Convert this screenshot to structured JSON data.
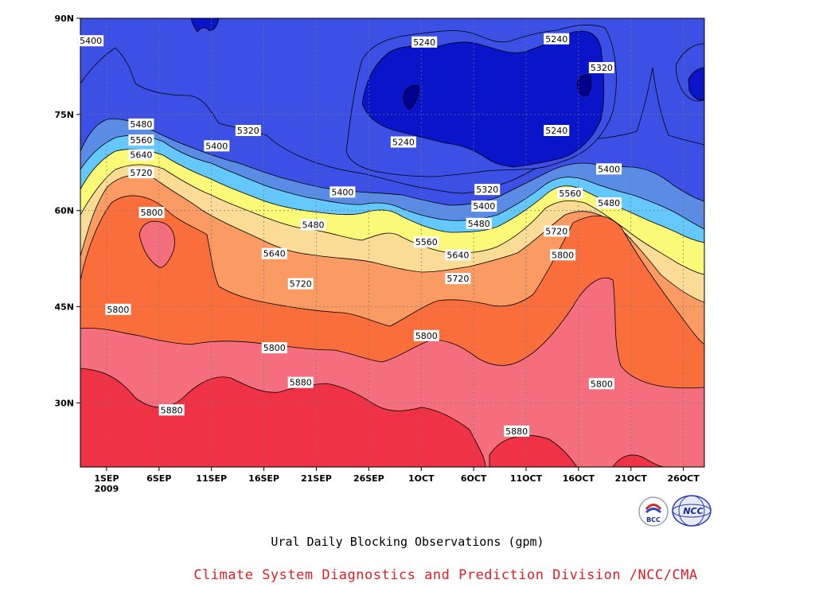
{
  "chart_data": {
    "type": "heatmap",
    "subtype": "filled-contour time-latitude section",
    "title": "Ural Daily Blocking Observations (gpm)",
    "x_ticks": [
      "1SEP",
      "6SEP",
      "11SEP",
      "16SEP",
      "21SEP",
      "26SEP",
      "1OCT",
      "6OCT",
      "11OCT",
      "16OCT",
      "21OCT",
      "26OCT"
    ],
    "x_year_label": "2009",
    "y_ticks": [
      "30N",
      "45N",
      "60N",
      "75N",
      "90N"
    ],
    "xlim_days_from_sep1": [
      -2.5,
      57
    ],
    "ylim_latitude": [
      20,
      90
    ],
    "grid": "dashed",
    "contour_levels": [
      5240,
      5320,
      5400,
      5480,
      5560,
      5640,
      5720,
      5800,
      5880
    ],
    "level_colors": [
      "#0a14c8",
      "#3c50e6",
      "#5a8ce6",
      "#64c8fa",
      "#fafa78",
      "#fadc96",
      "#fa9b64",
      "#fa6e3c",
      "#f56e7d",
      "#f03246"
    ],
    "contour_labels": [
      {
        "text": "5400",
        "x": -1.5,
        "y": 86.5
      },
      {
        "text": "5240",
        "x": 30.3,
        "y": 86.3
      },
      {
        "text": "5240",
        "x": 42.9,
        "y": 86.8
      },
      {
        "text": "5320",
        "x": 47.2,
        "y": 82.3
      },
      {
        "text": "5480",
        "x": 3.3,
        "y": 73.5
      },
      {
        "text": "5560",
        "x": 3.3,
        "y": 71.0
      },
      {
        "text": "5640",
        "x": 3.3,
        "y": 68.7
      },
      {
        "text": "5720",
        "x": 3.3,
        "y": 65.9
      },
      {
        "text": "5320",
        "x": 13.5,
        "y": 72.5
      },
      {
        "text": "5400",
        "x": 10.5,
        "y": 70.1
      },
      {
        "text": "5240",
        "x": 28.3,
        "y": 70.7
      },
      {
        "text": "5240",
        "x": 42.9,
        "y": 72.5
      },
      {
        "text": "5400",
        "x": 47.9,
        "y": 66.5
      },
      {
        "text": "5400",
        "x": 22.5,
        "y": 62.9
      },
      {
        "text": "5320",
        "x": 36.3,
        "y": 63.3
      },
      {
        "text": "5560",
        "x": 44.2,
        "y": 62.7
      },
      {
        "text": "5400",
        "x": 36.0,
        "y": 60.7
      },
      {
        "text": "5480",
        "x": 47.9,
        "y": 61.2
      },
      {
        "text": "5800",
        "x": 4.3,
        "y": 59.7
      },
      {
        "text": "5480",
        "x": 19.7,
        "y": 57.8
      },
      {
        "text": "5480",
        "x": 35.5,
        "y": 58.0
      },
      {
        "text": "5720",
        "x": 42.9,
        "y": 56.8
      },
      {
        "text": "5560",
        "x": 30.5,
        "y": 55.1
      },
      {
        "text": "5640",
        "x": 16.0,
        "y": 53.3
      },
      {
        "text": "5640",
        "x": 33.5,
        "y": 53.1
      },
      {
        "text": "5800",
        "x": 43.5,
        "y": 53.1
      },
      {
        "text": "5720",
        "x": 18.5,
        "y": 48.6
      },
      {
        "text": "5720",
        "x": 33.5,
        "y": 49.4
      },
      {
        "text": "5800",
        "x": 1.1,
        "y": 44.6
      },
      {
        "text": "5800",
        "x": 30.5,
        "y": 40.5
      },
      {
        "text": "5800",
        "x": 16.0,
        "y": 38.6
      },
      {
        "text": "5880",
        "x": 18.5,
        "y": 33.2
      },
      {
        "text": "5800",
        "x": 47.2,
        "y": 33.0
      },
      {
        "text": "5880",
        "x": 6.2,
        "y": 28.9
      },
      {
        "text": "5880",
        "x": 39.1,
        "y": 25.6
      }
    ]
  },
  "footer": {
    "credit": "Climate System Diagnostics and Prediction Division /NCC/CMA",
    "credit_color": "#dc1e28",
    "logos": [
      {
        "name": "bcc-logo-icon",
        "text": "BCC"
      },
      {
        "name": "ncc-logo-icon",
        "text": "NCC"
      }
    ]
  }
}
